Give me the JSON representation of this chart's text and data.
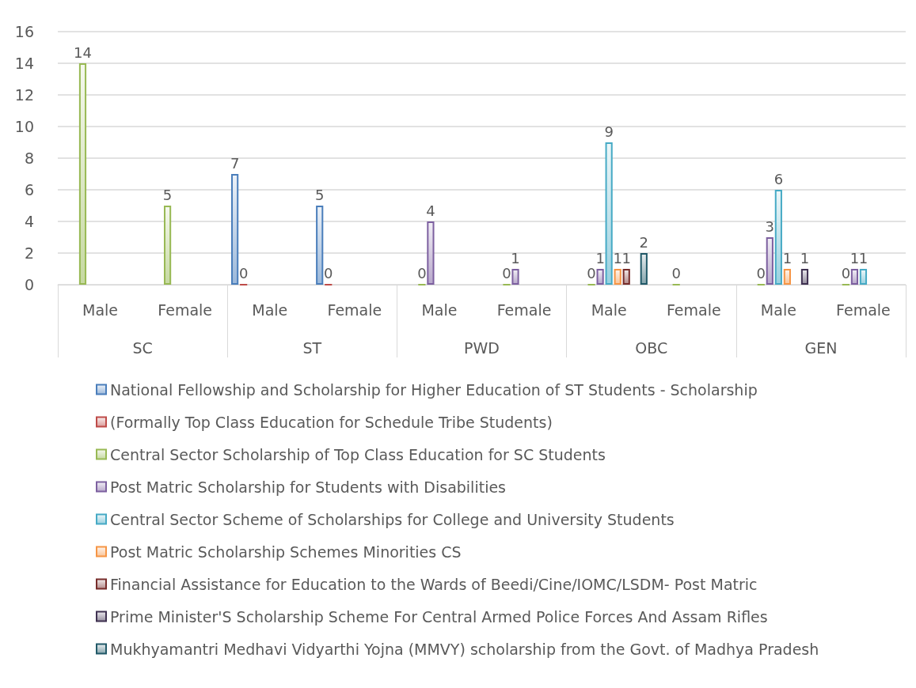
{
  "chart_data": {
    "type": "bar",
    "categories": [
      "Male",
      "Female",
      "Male",
      "Female",
      "Male",
      "Female",
      "Male",
      "Female",
      "Male",
      "Female"
    ],
    "annotations": [
      "SC",
      "ST",
      "PWD",
      "OBC",
      "GEN"
    ],
    "ylim": [
      0,
      16
    ],
    "yticks": [
      0,
      2,
      4,
      6,
      8,
      10,
      12,
      14,
      16
    ],
    "grid": "y",
    "legend": "bottom",
    "data_labels": true,
    "series": [
      {
        "name": "National Fellowship and Scholarship for Higher Education of ST Students - Scholarship",
        "color": "#4a7ebb",
        "values": [
          null,
          null,
          7,
          5,
          null,
          null,
          null,
          null,
          null,
          null
        ]
      },
      {
        "name": "(Formally Top Class Education for Schedule Tribe Students)",
        "color": "#be4b48",
        "values": [
          null,
          null,
          0,
          0,
          null,
          null,
          null,
          null,
          null,
          null
        ]
      },
      {
        "name": "Central Sector Scholarship of Top Class Education for SC Students",
        "color": "#98b954",
        "values": [
          14,
          5,
          null,
          null,
          0,
          0,
          0,
          0,
          0,
          0
        ]
      },
      {
        "name": "Post Matric Scholarship for Students with Disabilities",
        "color": "#7d60a0",
        "values": [
          null,
          null,
          null,
          null,
          4,
          1,
          1,
          null,
          3,
          1
        ]
      },
      {
        "name": "Central Sector Scheme of Scholarships for College and University Students",
        "color": "#46aac5",
        "values": [
          null,
          null,
          null,
          null,
          null,
          null,
          9,
          null,
          6,
          1
        ]
      },
      {
        "name": "Post Matric Scholarship Schemes Minorities CS",
        "color": "#f69545",
        "values": [
          null,
          null,
          null,
          null,
          null,
          null,
          1,
          null,
          1,
          null
        ]
      },
      {
        "name": "Financial Assistance for Education to the Wards of Beedi/Cine/IOMC/LSDM- Post Matric",
        "color": "#772c2a",
        "values": [
          null,
          null,
          null,
          null,
          null,
          null,
          1,
          null,
          null,
          null
        ]
      },
      {
        "name": "Prime Minister'S Scholarship Scheme For Central Armed Police Forces And Assam Rifles",
        "color": "#3f3151",
        "values": [
          null,
          null,
          null,
          null,
          null,
          null,
          null,
          null,
          1,
          null
        ]
      },
      {
        "name": "Mukhyamantri Medhavi Vidyarthi Yojna (MMVY) scholarship from the Govt. of Madhya Pradesh",
        "color": "#215968",
        "values": [
          null,
          null,
          null,
          null,
          null,
          null,
          2,
          null,
          null,
          null
        ]
      }
    ]
  }
}
